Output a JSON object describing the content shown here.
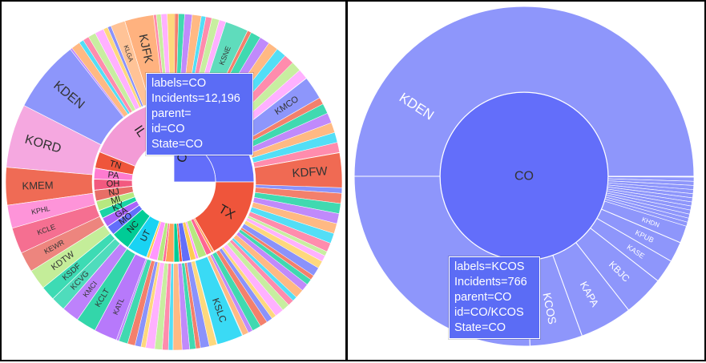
{
  "charts": [
    {
      "tooltip": {
        "labels_line": "labels=CO",
        "value_line": "Incidents=12,196",
        "parent_line": "parent=",
        "id_line": "id=CO",
        "state_line": "State=CO",
        "bg": "#5b6cf5"
      }
    },
    {
      "tooltip": {
        "labels_line": "labels=KCOS",
        "value_line": "Incidents=766",
        "parent_line": "parent=CO",
        "id_line": "id=CO/KCOS",
        "state_line": "State=CO",
        "bg": "#5b6cf5"
      }
    }
  ],
  "chart_data": [
    {
      "type": "sunburst",
      "value_label": "Incidents",
      "total_visible_center_value": 12196,
      "inner_ring": [
        {
          "label": "CO",
          "value": 12196,
          "color": "#636efa"
        },
        {
          "label": "IL",
          "color": "#f39bd6"
        },
        {
          "label": "TN",
          "color": "#ef553b"
        },
        {
          "label": "PA",
          "color": "#fe7bd0"
        },
        {
          "label": "OH",
          "color": "#f2597f"
        },
        {
          "label": "NJ",
          "color": "#e86e66"
        },
        {
          "label": "MI",
          "color": "#b6e880"
        },
        {
          "label": "KY",
          "color": "#19d3a5"
        },
        {
          "label": "GA",
          "color": "#ab63fa"
        },
        {
          "label": "MO",
          "color": "#636efa"
        },
        {
          "label": "NC",
          "color": "#00cc96"
        },
        {
          "label": "UT",
          "color": "#19d3f3"
        },
        {
          "label": "TX",
          "color": "#ef553b"
        }
      ],
      "outer_labels": [
        {
          "label": "KDEN",
          "color": "#8d96fb"
        },
        {
          "label": "KORD",
          "color": "#f5a8e0"
        },
        {
          "label": "KMEM",
          "color": "#ef6b55"
        },
        {
          "label": "KPHL",
          "color": "#fe94d9"
        },
        {
          "label": "KCLE",
          "color": "#f56f91"
        },
        {
          "label": "KEWR",
          "color": "#ed857e"
        },
        {
          "label": "KDTW",
          "color": "#c4ed99"
        },
        {
          "label": "KSDF",
          "color": "#3ddbb4"
        },
        {
          "label": "KCVG",
          "color": "#4fdcbc"
        },
        {
          "label": "KMCI",
          "color": "#bd82fb"
        },
        {
          "label": "KCLT",
          "color": "#33d6aa"
        },
        {
          "label": "KATL",
          "color": "#b779fb"
        },
        {
          "label": "KSLC",
          "color": "#3adaf5"
        },
        {
          "label": "KDFW",
          "color": "#f06a53"
        },
        {
          "label": "KMCO",
          "color": "#8d96fb"
        },
        {
          "label": "KJFK",
          "color": "#ffb27f"
        },
        {
          "label": "KLGA",
          "color": "#ffc397"
        },
        {
          "label": "KSNE",
          "color": "#5fdcbc"
        }
      ]
    },
    {
      "type": "sunburst",
      "value_label": "Incidents",
      "center": {
        "label": "CO",
        "value": 12196,
        "color": "#636efa"
      },
      "children": [
        {
          "label": "KDEN",
          "color": "#8e96fb"
        },
        {
          "label": "KCOS",
          "value": 766,
          "color": "#8e96fb"
        },
        {
          "label": "KAPA",
          "color": "#8e96fb"
        },
        {
          "label": "KBJC",
          "color": "#8e96fb"
        },
        {
          "label": "KASE",
          "color": "#8e96fb"
        },
        {
          "label": "KPUB",
          "color": "#8e96fb"
        },
        {
          "label": "KHDN",
          "color": "#8e96fb"
        }
      ]
    }
  ]
}
